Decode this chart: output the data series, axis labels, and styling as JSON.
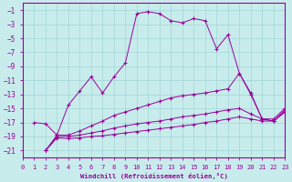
{
  "xlabel": "Windchill (Refroidissement éolien,°C)",
  "bg_color": "#c8ecec",
  "grid_color": "#a8d8d8",
  "line_color": "#990099",
  "xlim": [
    0,
    23
  ],
  "ylim": [
    -22,
    0
  ],
  "xticks": [
    0,
    1,
    2,
    3,
    4,
    5,
    6,
    7,
    8,
    9,
    10,
    11,
    12,
    13,
    14,
    15,
    16,
    17,
    18,
    19,
    20,
    21,
    22,
    23
  ],
  "yticks": [
    -1,
    -3,
    -5,
    -7,
    -9,
    -11,
    -13,
    -15,
    -17,
    -19,
    -21
  ],
  "series": [
    [
      [
        1,
        -17.0
      ],
      [
        2,
        -17.2
      ],
      [
        3,
        -18.8
      ],
      [
        4,
        -14.5
      ],
      [
        5,
        -12.5
      ],
      [
        6,
        -10.5
      ],
      [
        7,
        -12.8
      ],
      [
        8,
        -10.5
      ],
      [
        9,
        -8.5
      ],
      [
        10,
        -1.5
      ],
      [
        11,
        -1.2
      ],
      [
        12,
        -1.5
      ],
      [
        13,
        -2.5
      ],
      [
        14,
        -2.8
      ],
      [
        15,
        -2.2
      ],
      [
        16,
        -2.5
      ],
      [
        17,
        -6.5
      ],
      [
        18,
        -4.5
      ],
      [
        19,
        -10.0
      ],
      [
        20,
        -12.8
      ],
      [
        21,
        -16.5
      ],
      [
        22,
        -16.5
      ],
      [
        23,
        -15.0
      ]
    ],
    [
      [
        2,
        -21.0
      ],
      [
        3,
        -18.8
      ],
      [
        4,
        -18.8
      ],
      [
        5,
        -18.2
      ],
      [
        6,
        -17.5
      ],
      [
        7,
        -16.8
      ],
      [
        8,
        -16.0
      ],
      [
        9,
        -15.5
      ],
      [
        10,
        -15.0
      ],
      [
        11,
        -14.5
      ],
      [
        12,
        -14.0
      ],
      [
        13,
        -13.5
      ],
      [
        14,
        -13.2
      ],
      [
        15,
        -13.0
      ],
      [
        16,
        -12.8
      ],
      [
        17,
        -12.5
      ],
      [
        18,
        -12.2
      ],
      [
        19,
        -10.0
      ],
      [
        20,
        -13.0
      ],
      [
        21,
        -16.5
      ],
      [
        22,
        -16.8
      ],
      [
        23,
        -15.2
      ]
    ],
    [
      [
        2,
        -21.0
      ],
      [
        3,
        -19.0
      ],
      [
        4,
        -19.0
      ],
      [
        5,
        -18.8
      ],
      [
        6,
        -18.5
      ],
      [
        7,
        -18.2
      ],
      [
        8,
        -17.8
      ],
      [
        9,
        -17.5
      ],
      [
        10,
        -17.2
      ],
      [
        11,
        -17.0
      ],
      [
        12,
        -16.8
      ],
      [
        13,
        -16.5
      ],
      [
        14,
        -16.2
      ],
      [
        15,
        -16.0
      ],
      [
        16,
        -15.8
      ],
      [
        17,
        -15.5
      ],
      [
        18,
        -15.2
      ],
      [
        19,
        -15.0
      ],
      [
        20,
        -15.8
      ],
      [
        21,
        -16.5
      ],
      [
        22,
        -16.8
      ],
      [
        23,
        -15.5
      ]
    ],
    [
      [
        2,
        -21.0
      ],
      [
        3,
        -19.2
      ],
      [
        4,
        -19.3
      ],
      [
        5,
        -19.2
      ],
      [
        6,
        -19.0
      ],
      [
        7,
        -18.9
      ],
      [
        8,
        -18.7
      ],
      [
        9,
        -18.5
      ],
      [
        10,
        -18.3
      ],
      [
        11,
        -18.1
      ],
      [
        12,
        -17.9
      ],
      [
        13,
        -17.7
      ],
      [
        14,
        -17.5
      ],
      [
        15,
        -17.3
      ],
      [
        16,
        -17.0
      ],
      [
        17,
        -16.8
      ],
      [
        18,
        -16.5
      ],
      [
        19,
        -16.2
      ],
      [
        20,
        -16.5
      ],
      [
        21,
        -16.8
      ],
      [
        22,
        -16.8
      ],
      [
        23,
        -15.5
      ]
    ]
  ]
}
